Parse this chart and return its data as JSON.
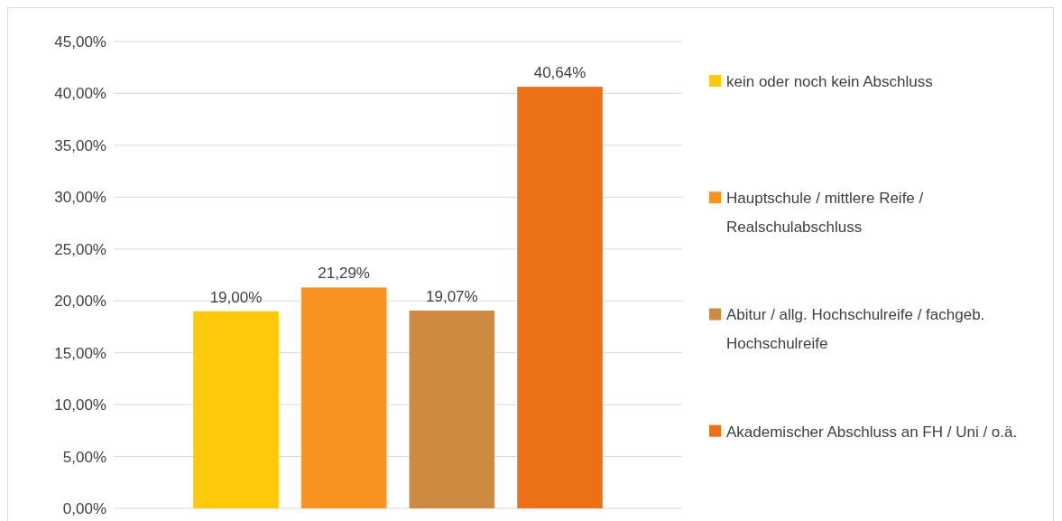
{
  "chart_data": {
    "type": "bar",
    "categories": [
      null
    ],
    "series": [
      {
        "name": "kein oder noch kein Abschluss",
        "color": "#ffc90b",
        "values": [
          19.0
        ],
        "value_labels": [
          "19,00%"
        ]
      },
      {
        "name": "Hauptschule / mittlere Reife / Realschulabschluss",
        "color": "#f7931e",
        "values": [
          21.29
        ],
        "value_labels": [
          "21,29%"
        ]
      },
      {
        "name": "Abitur / allg. Hochschulreife / fachgeb. Hochschulreife",
        "color": "#cd8a40",
        "values": [
          19.07
        ],
        "value_labels": [
          "19,07%"
        ]
      },
      {
        "name": "Akademischer Abschluss an FH / Uni / o.ä.",
        "color": "#ec7016",
        "values": [
          40.64
        ],
        "value_labels": [
          "40,64%"
        ]
      }
    ],
    "ylim": [
      0,
      45
    ],
    "yticks": [
      {
        "value": 0,
        "label": "0,00%"
      },
      {
        "value": 5,
        "label": "5,00%"
      },
      {
        "value": 10,
        "label": "10,00%"
      },
      {
        "value": 15,
        "label": "15,00%"
      },
      {
        "value": 20,
        "label": "20,00%"
      },
      {
        "value": 25,
        "label": "25,00%"
      },
      {
        "value": 30,
        "label": "30,00%"
      },
      {
        "value": 35,
        "label": "35,00%"
      },
      {
        "value": 40,
        "label": "40,00%"
      },
      {
        "value": 45,
        "label": "45,00%"
      }
    ],
    "grid": "y",
    "legend": "right"
  }
}
